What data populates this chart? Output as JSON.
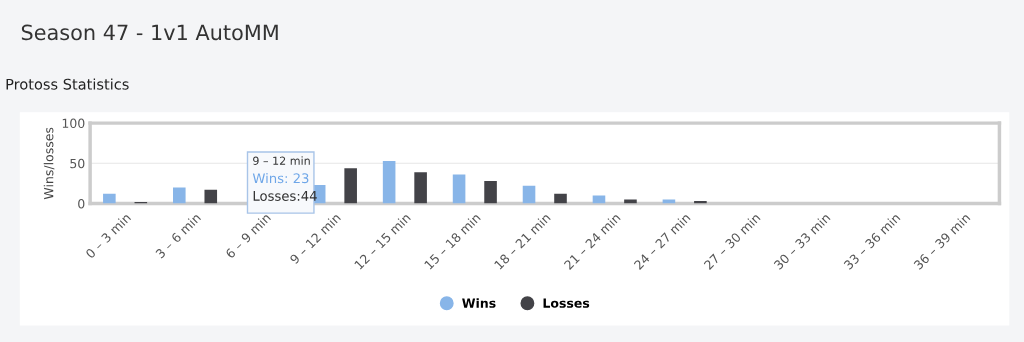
{
  "chart_data": {
    "type": "bar",
    "title": "Season 47 - 1v1 AutoMM",
    "subtitle": "Protoss Statistics",
    "ylabel": "Wins/losses",
    "categories": [
      "0 – 3 min",
      "3 – 6 min",
      "6 – 9 min",
      "9 – 12 min",
      "12 – 15 min",
      "15 – 18 min",
      "18 – 21 min",
      "21 – 24 min",
      "24 – 27 min",
      "27 – 30 min",
      "30 – 33 min",
      "33 – 36 min",
      "36 – 39 min"
    ],
    "series": [
      {
        "name": "Wins",
        "color": "#88b5e8",
        "values": [
          12,
          20,
          null,
          23,
          53,
          36,
          22,
          10,
          5,
          0,
          0,
          0,
          0
        ]
      },
      {
        "name": "Losses",
        "color": "#434348",
        "values": [
          2,
          17,
          null,
          44,
          39,
          28,
          12,
          5,
          3,
          0,
          0,
          0,
          0
        ]
      }
    ],
    "ylim": [
      0,
      100
    ],
    "yticks": [
      0,
      50,
      100
    ],
    "grid": "y",
    "legend": "bottom",
    "annotations": [
      "9 – 12 min",
      "Wins: 23",
      "Losses:44"
    ]
  }
}
